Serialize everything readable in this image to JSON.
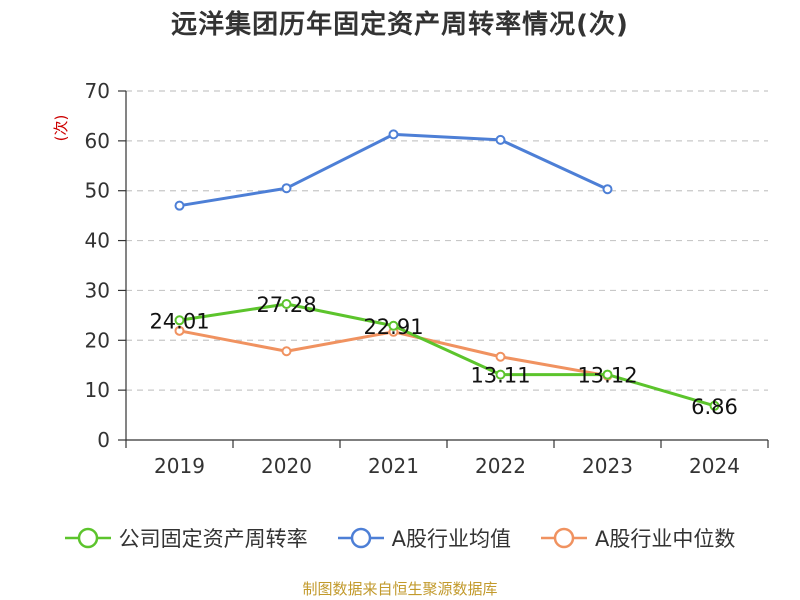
{
  "title": "远洋集团历年固定资产周转率情况(次)",
  "source_note": "制图数据来自恒生聚源数据库",
  "chart_data": {
    "type": "line",
    "title": "远洋集团历年固定资产周转率情况(次)",
    "xlabel": "",
    "ylabel": "(次)",
    "categories": [
      "2019",
      "2020",
      "2021",
      "2022",
      "2023",
      "2024"
    ],
    "ylim": [
      0,
      70
    ],
    "yticks": [
      0,
      10,
      20,
      30,
      40,
      50,
      60,
      70
    ],
    "grid": true,
    "legend_position": "bottom",
    "series": [
      {
        "name": "公司固定资产周转率",
        "color": "#5cc42c",
        "show_labels": true,
        "values": [
          24.01,
          27.28,
          22.91,
          13.11,
          13.12,
          6.86
        ]
      },
      {
        "name": "A股行业均值",
        "color": "#4d7fd6",
        "show_labels": false,
        "values": [
          47.0,
          50.5,
          61.3,
          60.2,
          50.3,
          null
        ]
      },
      {
        "name": "A股行业中位数",
        "color": "#f09260",
        "show_labels": false,
        "values": [
          21.9,
          17.8,
          21.7,
          16.7,
          12.9,
          null
        ]
      }
    ]
  },
  "legend": {
    "items": [
      {
        "label": "公司固定资产周转率",
        "color": "#5cc42c"
      },
      {
        "label": "A股行业均值",
        "color": "#4d7fd6"
      },
      {
        "label": "A股行业中位数",
        "color": "#f09260"
      }
    ]
  }
}
